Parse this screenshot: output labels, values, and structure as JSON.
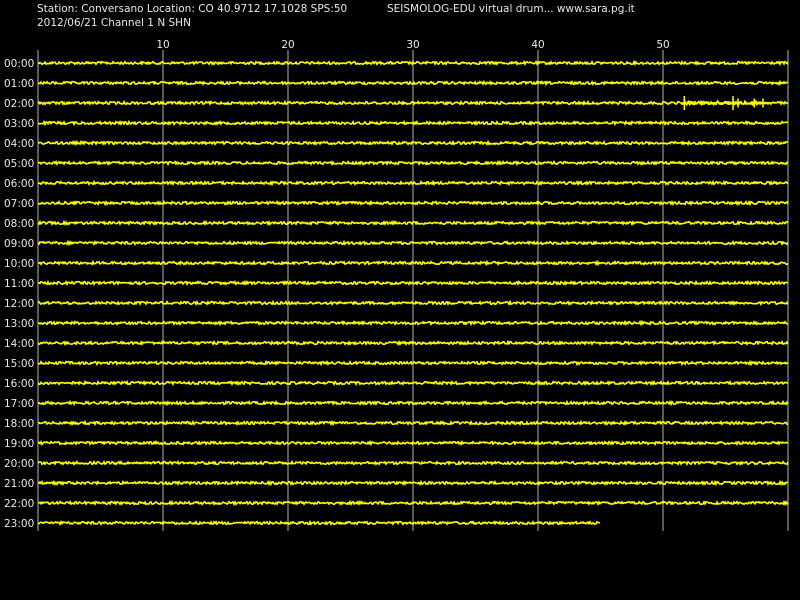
{
  "header": {
    "station_line": "Station: Conversano Location: CO 40.9712 17.1028 SPS:50",
    "source_line": "SEISMOLOG-EDU virtual drum... www.sara.pg.it",
    "date_line": "2012/06/21  Channel 1 N SHN"
  },
  "colors": {
    "background": "#000000",
    "trace": "#ffff00",
    "grid": "#b4b4b4",
    "text": "#e8e8e8"
  },
  "chart_data": {
    "type": "line",
    "subtype": "seismograph-drum",
    "x_axis": {
      "unit": "minutes",
      "range": [
        0,
        60
      ],
      "ticks": [
        10,
        20,
        30,
        40,
        50
      ],
      "tick_labels": [
        "10",
        "20",
        "30",
        "40",
        "50"
      ]
    },
    "rows": [
      "00:00",
      "01:00",
      "02:00",
      "03:00",
      "04:00",
      "05:00",
      "06:00",
      "07:00",
      "08:00",
      "09:00",
      "10:00",
      "11:00",
      "12:00",
      "13:00",
      "14:00",
      "15:00",
      "16:00",
      "17:00",
      "18:00",
      "19:00",
      "20:00",
      "21:00",
      "22:00",
      "23:00"
    ],
    "row_end_minutes": [
      60,
      60,
      60,
      60,
      60,
      60,
      60,
      60,
      60,
      60,
      60,
      60,
      60,
      60,
      60,
      60,
      60,
      60,
      60,
      60,
      60,
      60,
      60,
      45
    ],
    "events": [
      {
        "row": "02:00",
        "start_minute": 51.5,
        "end_minute": 58.5,
        "peaks_minutes": [
          51.7,
          55.6,
          56.0,
          57.3,
          58.0
        ]
      }
    ],
    "grid": true
  }
}
